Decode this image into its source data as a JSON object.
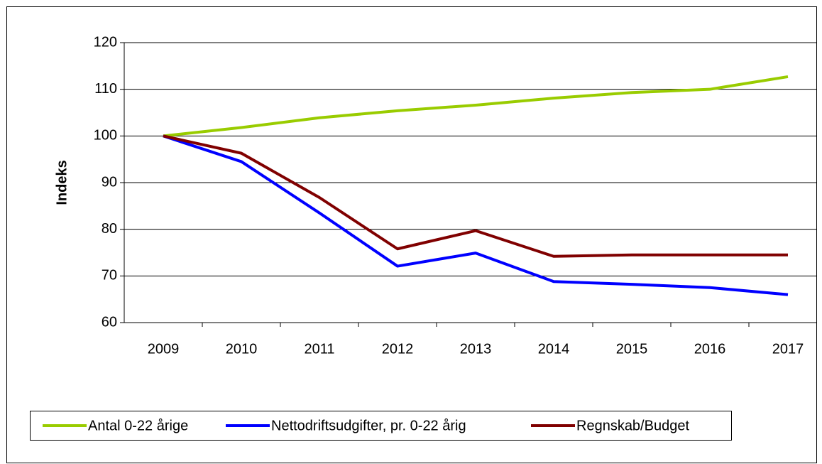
{
  "chart_data": {
    "type": "line",
    "y_label": "Indeks",
    "categories": [
      "2009",
      "2010",
      "2011",
      "2012",
      "2013",
      "2014",
      "2015",
      "2016",
      "2017"
    ],
    "series": [
      {
        "name": "Antal 0-22 årige",
        "color": "#99cc00",
        "values": [
          100,
          101.8,
          103.9,
          105.4,
          106.6,
          108.1,
          109.3,
          110,
          112.7
        ]
      },
      {
        "name": "Nettodriftsudgifter, pr. 0-22 årig",
        "color": "#0000ff",
        "values": [
          100,
          94.5,
          83.5,
          72.1,
          74.9,
          68.8,
          68.2,
          67.5,
          66
        ]
      },
      {
        "name": "Regnskab/Budget",
        "color": "#800000",
        "values": [
          100,
          96.3,
          86.8,
          75.8,
          79.7,
          74.2,
          74.5,
          74.5,
          74.5
        ]
      }
    ],
    "ylim": [
      60,
      120
    ],
    "yticks": [
      60,
      70,
      80,
      90,
      100,
      110,
      120
    ],
    "grid": true,
    "legend": "bottom"
  }
}
